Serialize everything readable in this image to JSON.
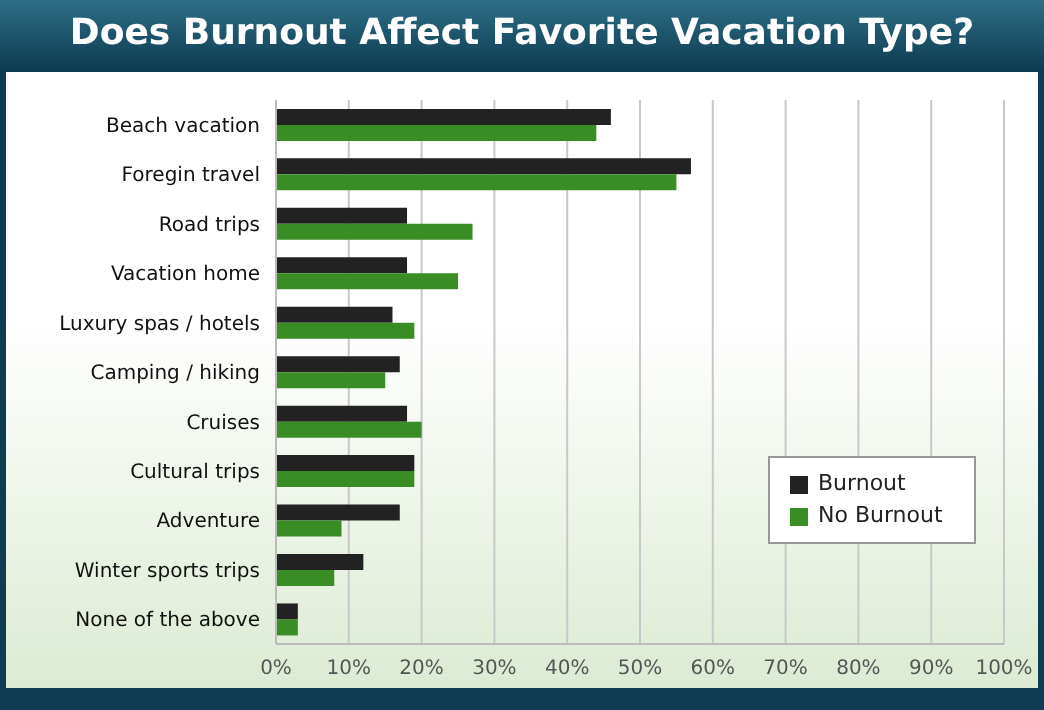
{
  "chart_data": {
    "type": "bar",
    "orientation": "horizontal",
    "title": "Does Burnout Affect Favorite Vacation Type?",
    "categories": [
      "Beach vacation",
      "Foregin travel",
      "Road trips",
      "Vacation home",
      "Luxury spas / hotels",
      "Camping / hiking",
      "Cruises",
      "Cultural trips",
      "Adventure",
      "Winter sports trips",
      "None of the above"
    ],
    "series": [
      {
        "name": "Burnout",
        "color": "#222222",
        "values": [
          46,
          57,
          18,
          18,
          16,
          17,
          18,
          19,
          17,
          12,
          3
        ]
      },
      {
        "name": "No Burnout",
        "color": "#3a8c24",
        "values": [
          44,
          55,
          27,
          25,
          19,
          15,
          20,
          19,
          9,
          8,
          3
        ]
      }
    ],
    "xlim": [
      0,
      100
    ],
    "xticks": [
      {
        "value": 0,
        "label": "0%"
      },
      {
        "value": 10,
        "label": "10%"
      },
      {
        "value": 20,
        "label": "20%"
      },
      {
        "value": 30,
        "label": "30%"
      },
      {
        "value": 40,
        "label": "40%"
      },
      {
        "value": 50,
        "label": "50%"
      },
      {
        "value": 60,
        "label": "60%"
      },
      {
        "value": 70,
        "label": "70%"
      },
      {
        "value": 80,
        "label": "80%"
      },
      {
        "value": 90,
        "label": "90%"
      },
      {
        "value": 100,
        "label": "100%"
      }
    ],
    "grid": "x",
    "legend": "right"
  }
}
